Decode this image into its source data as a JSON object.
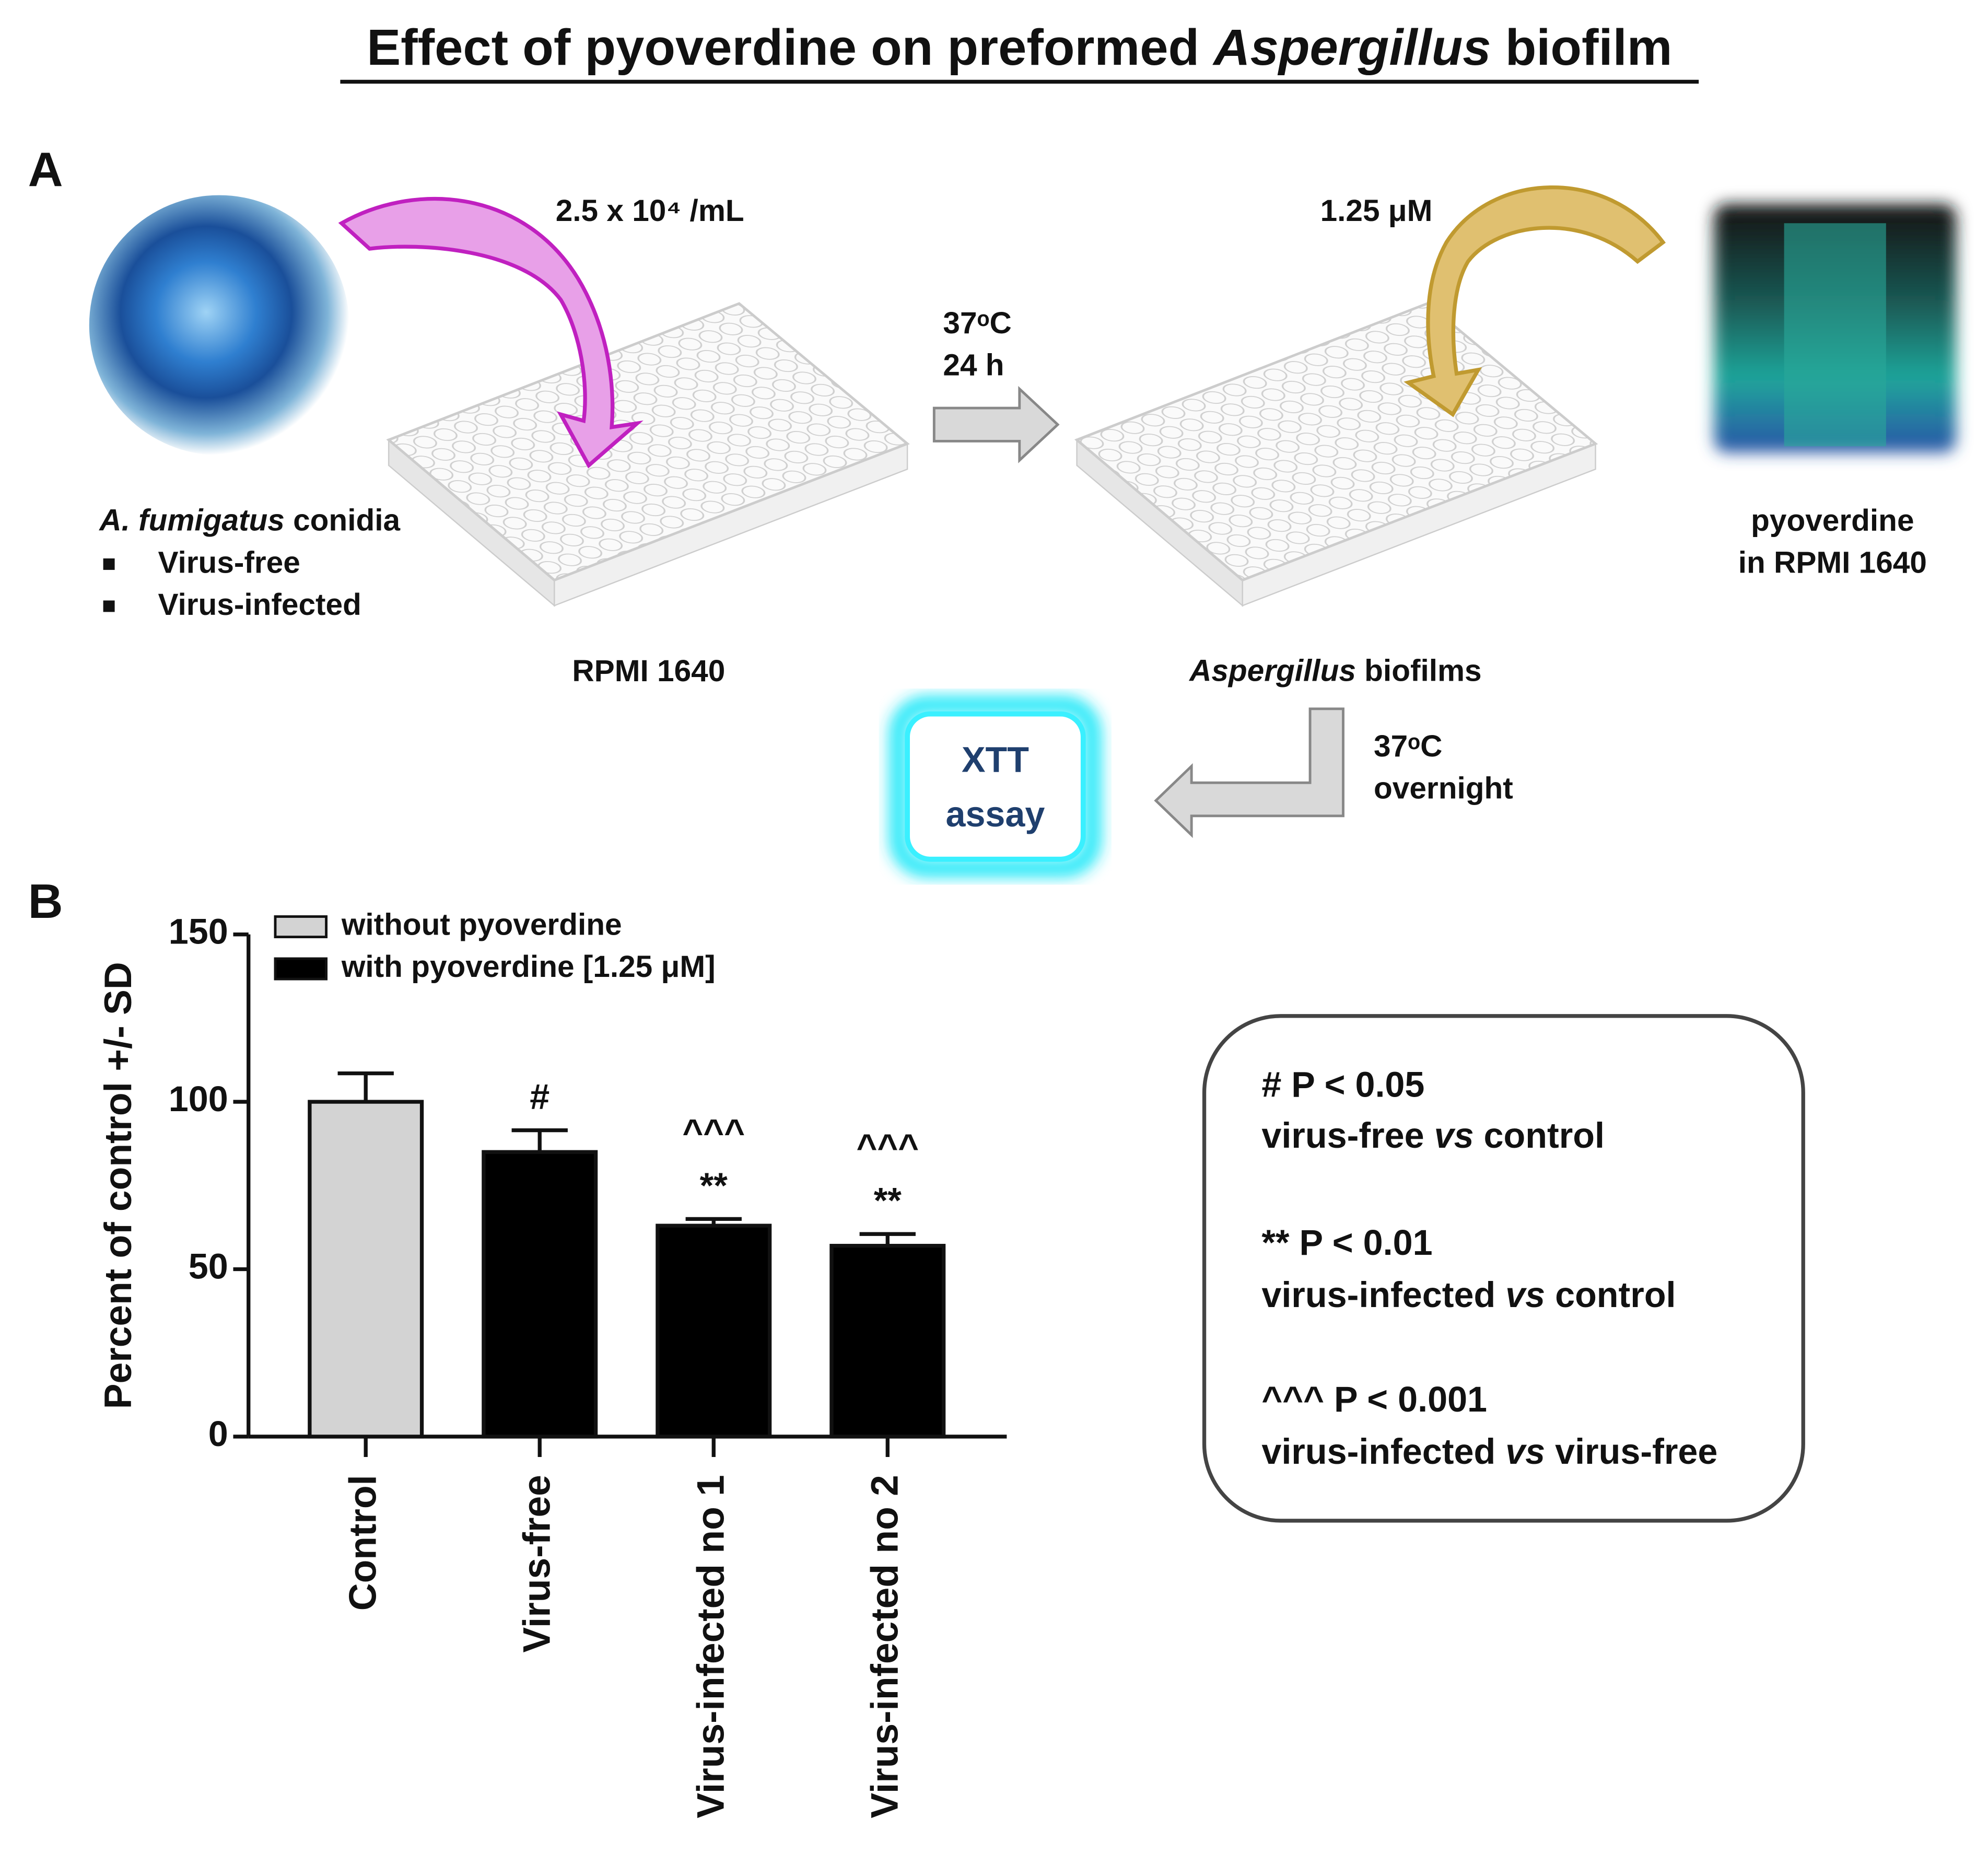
{
  "title": [
    "Effect of pyoverdine on preformed ",
    "Aspergillus",
    " biofilm"
  ],
  "panel_a": {
    "label": "A",
    "conidia": {
      "caption": [
        "A. fumigatus",
        " conidia"
      ],
      "items": [
        "Virus-free",
        "Virus-infected"
      ]
    },
    "inoculum": "2.5 x 10⁴ /mL",
    "medium": "RPMI 1640",
    "incubation_1": [
      "37ᵒC",
      "24 h"
    ],
    "dose": "1.25 μM",
    "pyoverdine": [
      "pyoverdine",
      "in RPMI 1640"
    ],
    "biofilms": [
      "Aspergillus",
      " biofilms"
    ],
    "incubation_2": [
      "37ᵒC",
      "overnight"
    ],
    "assay": [
      "XTT",
      "assay"
    ]
  },
  "panel_b_label": "B",
  "stats_box": [
    "# P < 0.05",
    [
      "virus-free ",
      "vs",
      " control"
    ],
    "** P < 0.01",
    [
      "virus-infected ",
      "vs",
      " control"
    ],
    "^^^ P < 0.001",
    [
      "virus-infected ",
      "vs",
      " virus-free"
    ]
  ],
  "chart_data": {
    "type": "bar",
    "y_label": "Percent of control +/- SD",
    "categories": [
      "Control",
      "Virus-free",
      "Virus-infected no 1",
      "Virus-infected no 2"
    ],
    "series": [
      {
        "name": "without pyoverdine",
        "color": "#d3d3d3",
        "values": [
          100,
          null,
          null,
          null
        ],
        "errors": [
          8.5,
          null,
          null,
          null
        ]
      },
      {
        "name": "with pyoverdine [1.25 μM]",
        "color": "#000000",
        "values": [
          null,
          85,
          63,
          57
        ],
        "errors": [
          null,
          6.5,
          2,
          3.5
        ]
      }
    ],
    "annotations": [
      null,
      [
        "#"
      ],
      [
        "^^^",
        "**"
      ],
      [
        "^^^",
        "**"
      ]
    ],
    "ylim": [
      0,
      150
    ],
    "yticks": [
      0,
      50,
      100,
      150
    ],
    "legend": "upper left"
  }
}
